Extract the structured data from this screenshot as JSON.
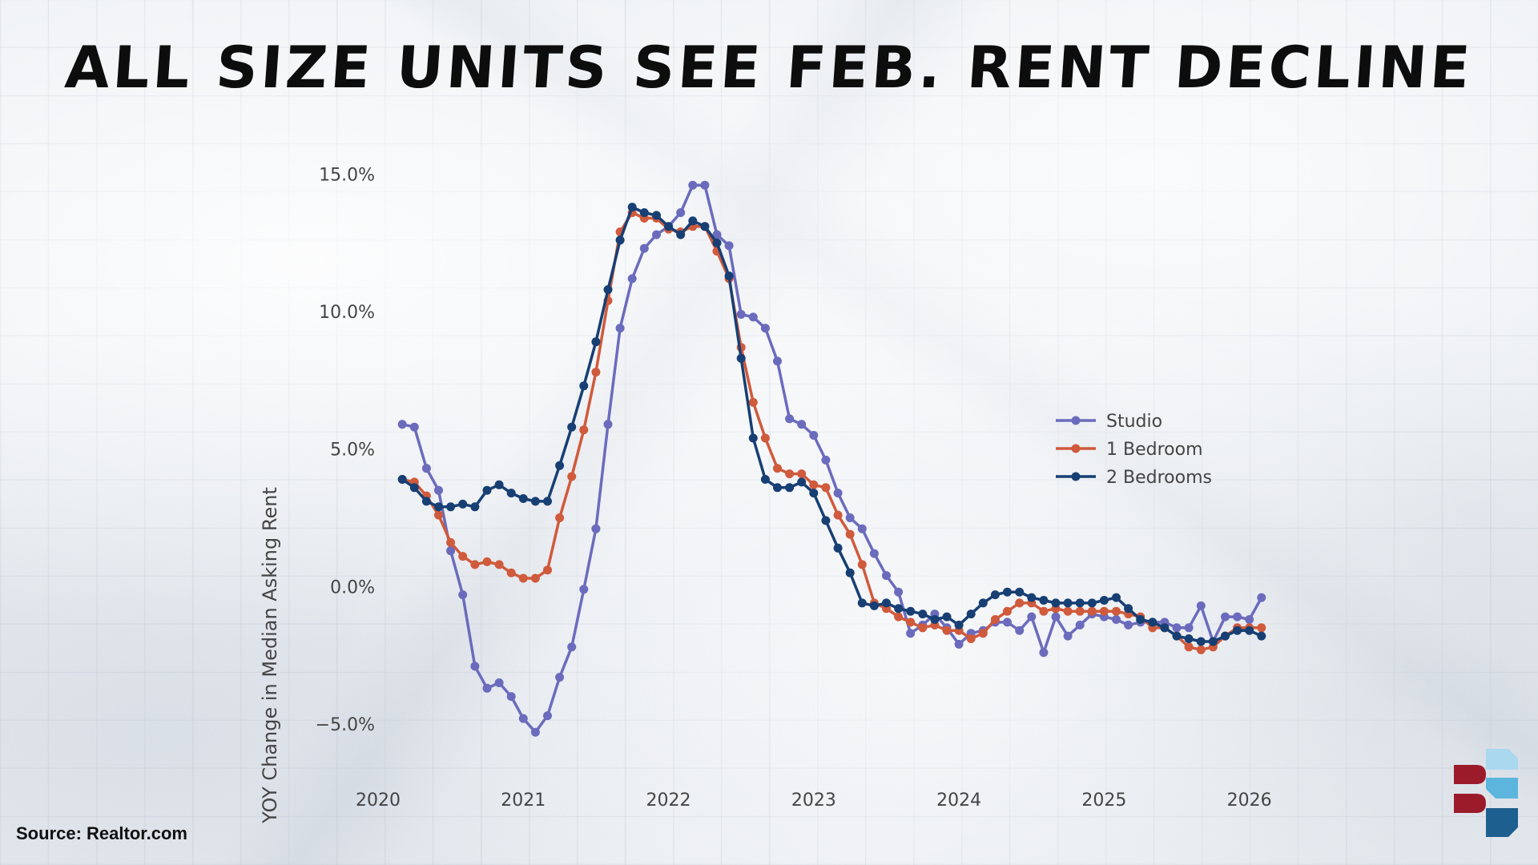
{
  "title": "ALL SIZE UNITS SEE FEB. RENT DECLINE",
  "source": "Source: Realtor.com",
  "colors": {
    "studio": "#6b6bbd",
    "one_bedroom": "#d05a3c",
    "two_bedrooms": "#173f73",
    "axis_text": "#444444",
    "logo_red": "#9b1b2a",
    "logo_blue": "#1d5f8f",
    "logo_light_blue": "#5bb5dd"
  },
  "chart_data": {
    "type": "line",
    "title": "ALL SIZE UNITS SEE FEB. RENT DECLINE",
    "xlabel": "",
    "ylabel": "YOY Change in Median Asking Rent",
    "x_ticks": [
      "2020",
      "2021",
      "2022",
      "2023",
      "2024",
      "2025",
      "2026"
    ],
    "y_ticks": [
      "15.0%",
      "10.0%",
      "5.0%",
      "0.0%",
      "−5.0%"
    ],
    "xlim": [
      "2020-01",
      "2026-04"
    ],
    "ylim": [
      -6.4,
      15.8
    ],
    "grid": false,
    "legend": "right",
    "x": [
      "2020-03",
      "2020-04",
      "2020-05",
      "2020-06",
      "2020-07",
      "2020-08",
      "2020-09",
      "2020-10",
      "2020-11",
      "2020-12",
      "2021-01",
      "2021-02",
      "2021-03",
      "2021-04",
      "2021-05",
      "2021-06",
      "2021-07",
      "2021-08",
      "2021-09",
      "2021-10",
      "2021-11",
      "2021-12",
      "2022-01",
      "2022-02",
      "2022-03",
      "2022-04",
      "2022-05",
      "2022-06",
      "2022-07",
      "2022-08",
      "2022-09",
      "2022-10",
      "2022-11",
      "2022-12",
      "2023-01",
      "2023-02",
      "2023-03",
      "2023-04",
      "2023-05",
      "2023-06",
      "2023-07",
      "2023-08",
      "2023-09",
      "2023-10",
      "2023-11",
      "2023-12",
      "2024-01",
      "2024-02",
      "2024-03",
      "2024-04",
      "2024-05",
      "2024-06",
      "2024-07",
      "2024-08",
      "2024-09",
      "2024-10",
      "2024-11",
      "2024-12",
      "2025-01",
      "2025-02",
      "2025-03",
      "2025-04",
      "2025-05",
      "2025-06",
      "2025-07",
      "2025-08",
      "2025-09",
      "2025-10",
      "2025-11",
      "2025-12",
      "2026-01",
      "2026-02"
    ],
    "series": [
      {
        "name": "Studio",
        "values": [
          5.9,
          5.8,
          4.3,
          3.5,
          1.3,
          -0.3,
          -2.9,
          -3.7,
          -3.5,
          -4.0,
          -4.8,
          -5.3,
          -4.7,
          -3.3,
          -2.2,
          -0.1,
          2.1,
          5.9,
          9.4,
          11.2,
          12.3,
          12.8,
          13.1,
          13.6,
          14.6,
          14.6,
          12.8,
          12.4,
          9.9,
          9.8,
          9.4,
          8.2,
          6.1,
          5.9,
          5.5,
          4.6,
          3.4,
          2.5,
          2.1,
          1.2,
          0.4,
          -0.2,
          -1.7,
          -1.4,
          -1.0,
          -1.5,
          -2.1,
          -1.7,
          -1.6,
          -1.3,
          -1.3,
          -1.6,
          -1.1,
          -2.4,
          -1.1,
          -1.8,
          -1.4,
          -1.0,
          -1.1,
          -1.2,
          -1.4,
          -1.3,
          -1.3,
          -1.3,
          -1.5,
          -1.5,
          -0.7,
          -2.0,
          -1.1,
          -1.1,
          -1.2,
          -0.4
        ]
      },
      {
        "name": "1 Bedroom",
        "values": [
          3.9,
          3.8,
          3.3,
          2.6,
          1.6,
          1.1,
          0.8,
          0.9,
          0.8,
          0.5,
          0.3,
          0.3,
          0.6,
          2.5,
          4.0,
          5.7,
          7.8,
          10.4,
          12.9,
          13.6,
          13.4,
          13.4,
          13.0,
          12.9,
          13.1,
          13.1,
          12.2,
          11.2,
          8.7,
          6.7,
          5.4,
          4.3,
          4.1,
          4.1,
          3.7,
          3.6,
          2.6,
          1.9,
          0.8,
          -0.6,
          -0.8,
          -1.1,
          -1.3,
          -1.5,
          -1.4,
          -1.6,
          -1.6,
          -1.9,
          -1.7,
          -1.2,
          -0.9,
          -0.6,
          -0.6,
          -0.9,
          -0.8,
          -0.9,
          -0.9,
          -0.9,
          -0.9,
          -0.9,
          -1.0,
          -1.1,
          -1.5,
          -1.5,
          -1.8,
          -2.2,
          -2.3,
          -2.2,
          -1.8,
          -1.5,
          -1.5,
          -1.5
        ]
      },
      {
        "name": "2 Bedrooms",
        "values": [
          3.9,
          3.6,
          3.1,
          2.9,
          2.9,
          3.0,
          2.9,
          3.5,
          3.7,
          3.4,
          3.2,
          3.1,
          3.1,
          4.4,
          5.8,
          7.3,
          8.9,
          10.8,
          12.6,
          13.8,
          13.6,
          13.5,
          13.1,
          12.8,
          13.3,
          13.1,
          12.5,
          11.3,
          8.3,
          5.4,
          3.9,
          3.6,
          3.6,
          3.8,
          3.4,
          2.4,
          1.4,
          0.5,
          -0.6,
          -0.7,
          -0.6,
          -0.8,
          -0.9,
          -1.0,
          -1.2,
          -1.1,
          -1.4,
          -1.0,
          -0.6,
          -0.3,
          -0.2,
          -0.2,
          -0.4,
          -0.5,
          -0.6,
          -0.6,
          -0.6,
          -0.6,
          -0.5,
          -0.4,
          -0.8,
          -1.2,
          -1.3,
          -1.5,
          -1.8,
          -1.9,
          -2.0,
          -2.0,
          -1.8,
          -1.6,
          -1.6,
          -1.8
        ]
      }
    ]
  }
}
